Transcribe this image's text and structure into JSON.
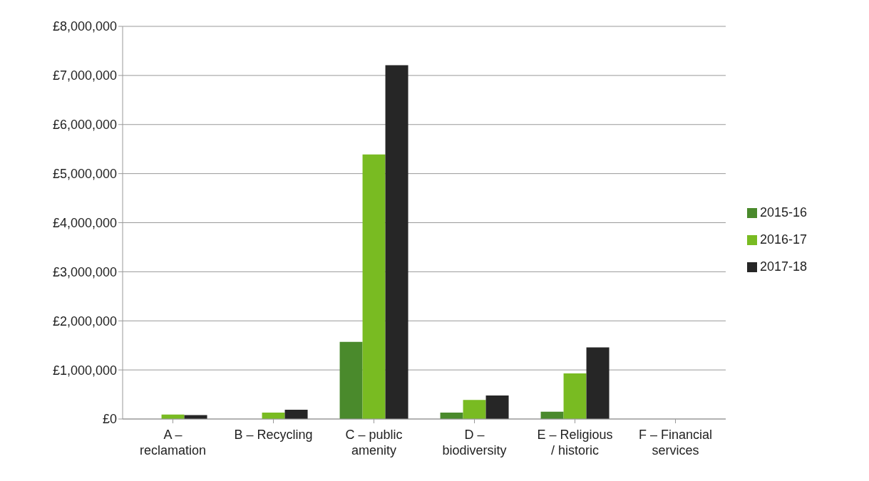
{
  "chart_data": {
    "type": "bar",
    "categories": [
      "A – reclamation",
      "B – Recycling",
      "C – public amenity",
      "D – biodiversity",
      "E – Religious / historic",
      "F – Financial services"
    ],
    "series": [
      {
        "name": "2015-16",
        "color": "#4a8a2c",
        "values": [
          0,
          0,
          1570000,
          130000,
          150000,
          0
        ]
      },
      {
        "name": "2016-17",
        "color": "#79bb22",
        "values": [
          90000,
          130000,
          5390000,
          390000,
          930000,
          0
        ]
      },
      {
        "name": "2017-18",
        "color": "#262626",
        "values": [
          80000,
          190000,
          7210000,
          480000,
          1460000,
          0
        ]
      }
    ],
    "ylim": [
      0,
      8000000
    ],
    "yticks": [
      {
        "value": 0,
        "label": "£0"
      },
      {
        "value": 1000000,
        "label": "£1,000,000"
      },
      {
        "value": 2000000,
        "label": "£2,000,000"
      },
      {
        "value": 3000000,
        "label": "£3,000,000"
      },
      {
        "value": 4000000,
        "label": "£4,000,000"
      },
      {
        "value": 5000000,
        "label": "£5,000,000"
      },
      {
        "value": 6000000,
        "label": "£6,000,000"
      },
      {
        "value": 7000000,
        "label": "£7,000,000"
      },
      {
        "value": 8000000,
        "label": "£8,000,000"
      }
    ],
    "grid": "y",
    "legend": "right"
  }
}
